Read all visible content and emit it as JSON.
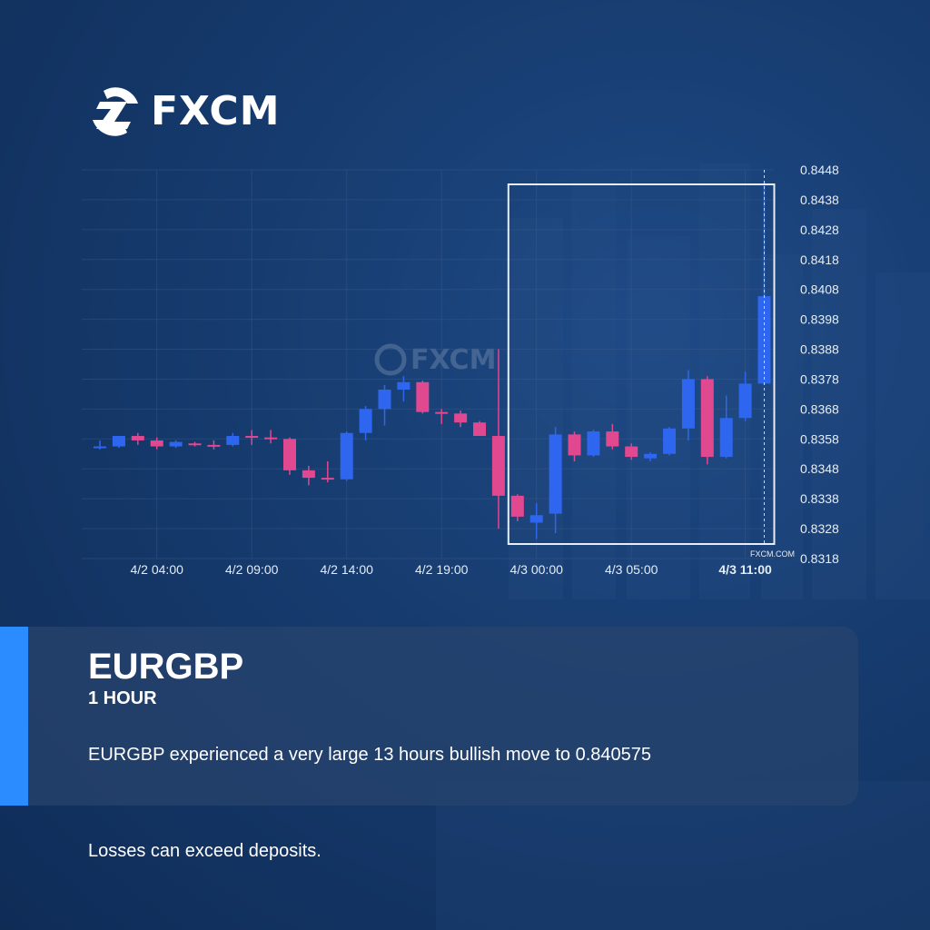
{
  "brand": {
    "logo_text": "FXCM",
    "watermark_text": "FXCM",
    "source_label": "FXCM.COM"
  },
  "card": {
    "symbol": "EURGBP",
    "timeframe": "1 HOUR",
    "message": "EURGBP experienced a very large 13 hours bullish move to 0.840575"
  },
  "disclaimer": "Losses can exceed deposits.",
  "colors": {
    "bullish": "#2f66f0",
    "bearish": "#e0488f",
    "accent": "#2a8cff",
    "grid": "#3a5a8c",
    "highlight_box": "#e8eef7"
  },
  "chart_data": {
    "type": "candlestick",
    "symbol": "EURGBP",
    "ylim": [
      0.8318,
      0.8448
    ],
    "y_ticks": [
      "0.8448",
      "0.8438",
      "0.8428",
      "0.8418",
      "0.8408",
      "0.8398",
      "0.8388",
      "0.8378",
      "0.8368",
      "0.8358",
      "0.8348",
      "0.8338",
      "0.8328",
      "0.8318"
    ],
    "x_ticks": [
      {
        "label": "4/2 04:00",
        "index": 3,
        "bold": false
      },
      {
        "label": "4/2 09:00",
        "index": 8,
        "bold": false
      },
      {
        "label": "4/2 14:00",
        "index": 13,
        "bold": false
      },
      {
        "label": "4/2 19:00",
        "index": 18,
        "bold": false
      },
      {
        "label": "4/3 00:00",
        "index": 23,
        "bold": false
      },
      {
        "label": "4/3 05:00",
        "index": 28,
        "bold": false
      },
      {
        "label": "4/3 11:00",
        "index": 34,
        "bold": true
      }
    ],
    "highlight": {
      "from_index": 22,
      "to_index": 34,
      "label": "13 hours bullish move"
    },
    "last_price": 0.840575,
    "candles": [
      {
        "o": 0.83555,
        "h": 0.83575,
        "l": 0.83545,
        "c": 0.83555
      },
      {
        "o": 0.83555,
        "h": 0.8359,
        "l": 0.8355,
        "c": 0.8359
      },
      {
        "o": 0.8359,
        "h": 0.836,
        "l": 0.8356,
        "c": 0.83575
      },
      {
        "o": 0.83575,
        "h": 0.83585,
        "l": 0.83545,
        "c": 0.83555
      },
      {
        "o": 0.83555,
        "h": 0.83575,
        "l": 0.8355,
        "c": 0.8357
      },
      {
        "o": 0.83565,
        "h": 0.8357,
        "l": 0.83555,
        "c": 0.8356
      },
      {
        "o": 0.8356,
        "h": 0.83575,
        "l": 0.83545,
        "c": 0.83555
      },
      {
        "o": 0.8356,
        "h": 0.836,
        "l": 0.83555,
        "c": 0.8359
      },
      {
        "o": 0.8359,
        "h": 0.8361,
        "l": 0.8356,
        "c": 0.83585
      },
      {
        "o": 0.83585,
        "h": 0.8361,
        "l": 0.83565,
        "c": 0.8358
      },
      {
        "o": 0.8358,
        "h": 0.83585,
        "l": 0.8346,
        "c": 0.83475
      },
      {
        "o": 0.83475,
        "h": 0.8349,
        "l": 0.83425,
        "c": 0.8345
      },
      {
        "o": 0.8345,
        "h": 0.83505,
        "l": 0.83435,
        "c": 0.83445
      },
      {
        "o": 0.83445,
        "h": 0.83605,
        "l": 0.8344,
        "c": 0.836
      },
      {
        "o": 0.836,
        "h": 0.8369,
        "l": 0.83575,
        "c": 0.8368
      },
      {
        "o": 0.8368,
        "h": 0.8376,
        "l": 0.83625,
        "c": 0.83745
      },
      {
        "o": 0.83745,
        "h": 0.8379,
        "l": 0.83705,
        "c": 0.8377
      },
      {
        "o": 0.8377,
        "h": 0.83775,
        "l": 0.83665,
        "c": 0.8367
      },
      {
        "o": 0.8367,
        "h": 0.8368,
        "l": 0.8363,
        "c": 0.83665
      },
      {
        "o": 0.83665,
        "h": 0.83675,
        "l": 0.8362,
        "c": 0.83635
      },
      {
        "o": 0.83635,
        "h": 0.8364,
        "l": 0.8359,
        "c": 0.8359
      },
      {
        "o": 0.8359,
        "h": 0.8388,
        "l": 0.8328,
        "c": 0.8339
      },
      {
        "o": 0.8339,
        "h": 0.83395,
        "l": 0.83305,
        "c": 0.8332
      },
      {
        "o": 0.833,
        "h": 0.83365,
        "l": 0.83245,
        "c": 0.83325
      },
      {
        "o": 0.8333,
        "h": 0.8362,
        "l": 0.83265,
        "c": 0.83595
      },
      {
        "o": 0.83595,
        "h": 0.83605,
        "l": 0.83505,
        "c": 0.83525
      },
      {
        "o": 0.83525,
        "h": 0.8361,
        "l": 0.8352,
        "c": 0.83605
      },
      {
        "o": 0.83605,
        "h": 0.8363,
        "l": 0.83545,
        "c": 0.83555
      },
      {
        "o": 0.83555,
        "h": 0.83565,
        "l": 0.8351,
        "c": 0.8352
      },
      {
        "o": 0.83515,
        "h": 0.83535,
        "l": 0.83505,
        "c": 0.8353
      },
      {
        "o": 0.8353,
        "h": 0.8362,
        "l": 0.83525,
        "c": 0.83615
      },
      {
        "o": 0.83615,
        "h": 0.8381,
        "l": 0.83575,
        "c": 0.8378
      },
      {
        "o": 0.8378,
        "h": 0.8379,
        "l": 0.83495,
        "c": 0.8352
      },
      {
        "o": 0.8352,
        "h": 0.83725,
        "l": 0.83515,
        "c": 0.8365
      },
      {
        "o": 0.8365,
        "h": 0.83805,
        "l": 0.8364,
        "c": 0.83765
      },
      {
        "o": 0.83765,
        "h": 0.8444,
        "l": 0.8376,
        "c": 0.840575
      }
    ]
  }
}
